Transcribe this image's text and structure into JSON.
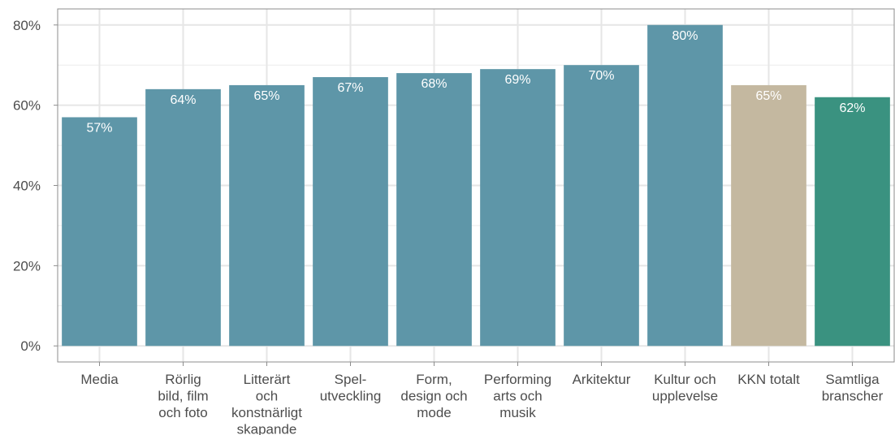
{
  "chart_data": {
    "type": "bar",
    "categories": [
      [
        "Media"
      ],
      [
        "Rörlig",
        "bild, film",
        "och foto"
      ],
      [
        "Litterärt",
        "och",
        "konstnärligt",
        "skapande"
      ],
      [
        "Spel-",
        "utveckling"
      ],
      [
        "Form,",
        "design och",
        "mode"
      ],
      [
        "Performing",
        "arts och",
        "musik"
      ],
      [
        "Arkitektur"
      ],
      [
        "Kultur och",
        "upplevelse"
      ],
      [
        "KKN totalt"
      ],
      [
        "Samtliga",
        "branscher"
      ]
    ],
    "values": [
      57,
      64,
      65,
      67,
      68,
      69,
      70,
      80,
      65,
      62
    ],
    "value_labels": [
      "57%",
      "64%",
      "65%",
      "67%",
      "68%",
      "69%",
      "70%",
      "80%",
      "65%",
      "62%"
    ],
    "bar_colors": [
      "#5e96a8",
      "#5e96a8",
      "#5e96a8",
      "#5e96a8",
      "#5e96a8",
      "#5e96a8",
      "#5e96a8",
      "#5e96a8",
      "#c4b8a0",
      "#3a9280"
    ],
    "ylim": [
      -4,
      84
    ],
    "yticks": [
      0,
      20,
      40,
      60,
      80
    ],
    "ytick_labels": [
      "0%",
      "20%",
      "40%",
      "60%",
      "80%"
    ],
    "grid": true,
    "title": "",
    "xlabel": "",
    "ylabel": ""
  }
}
